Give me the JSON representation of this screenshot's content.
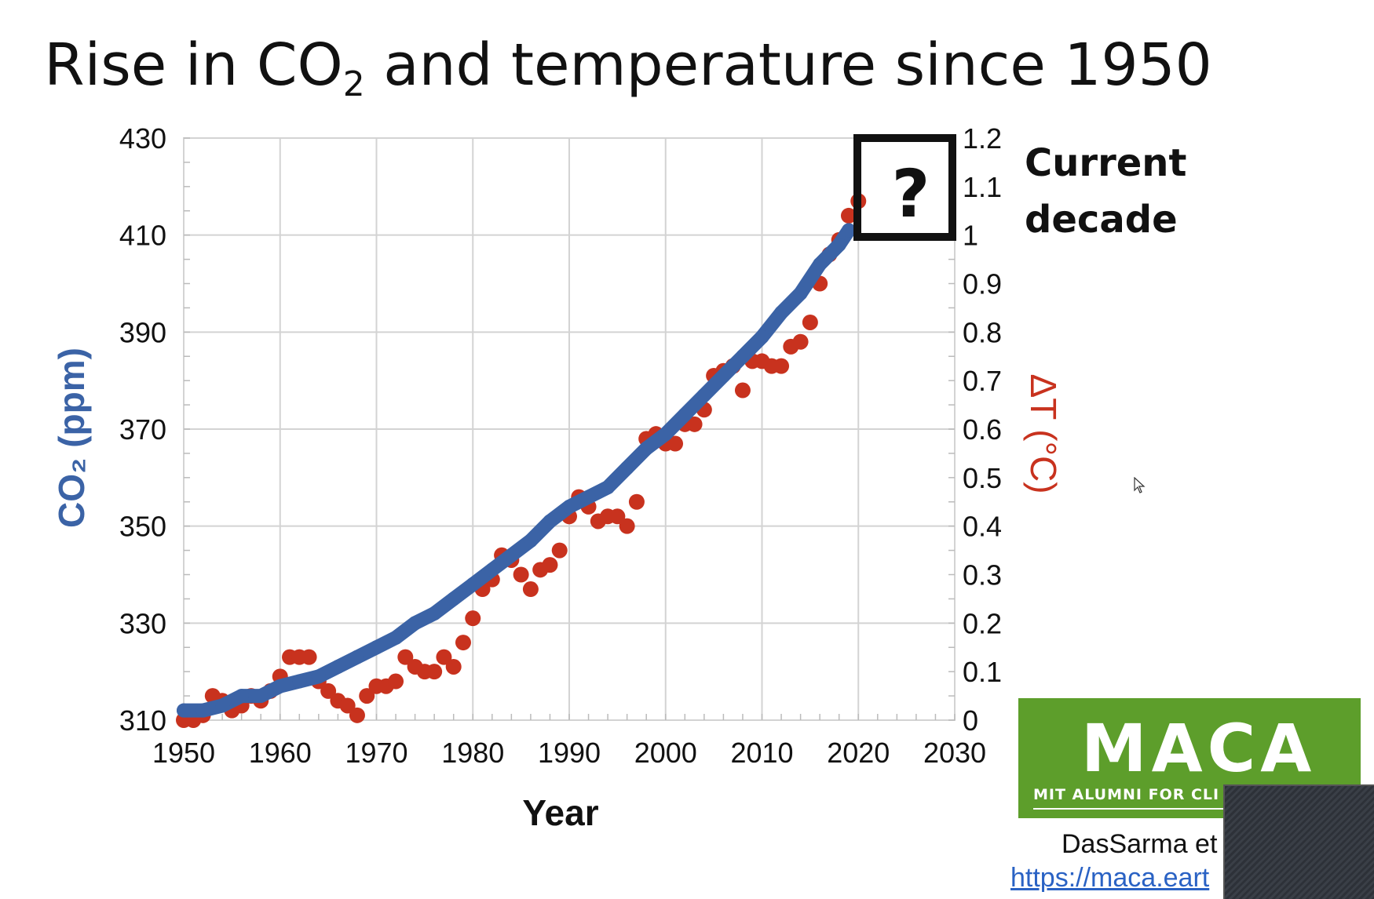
{
  "slide": {
    "title_main": "Rise in CO",
    "title_sub": "2",
    "title_rest": " and temperature since 1950",
    "note_line1": "Current",
    "note_line2": "decade",
    "question_mark": "?",
    "logo_text": "MACA",
    "logo_subtext": "MIT ALUMNI FOR CLI",
    "citation": "DasSarma et",
    "link": "https://maca.eart"
  },
  "chart_data": {
    "type": "scatter",
    "xlabel": "Year",
    "ylabel_left": "CO₂ (ppm)",
    "ylabel_right": "ΔT (°C)",
    "xlim": [
      1950,
      2030
    ],
    "ylim_left": [
      310,
      430
    ],
    "ylim_right": [
      0,
      1.2
    ],
    "x_ticks": [
      1950,
      1960,
      1970,
      1980,
      1990,
      2000,
      2010,
      2020,
      2030
    ],
    "y_left_ticks": [
      310,
      330,
      350,
      370,
      390,
      410,
      430
    ],
    "y_right_ticks": [
      0,
      0.1,
      0.2,
      0.3,
      0.4,
      0.5,
      0.6,
      0.7,
      0.8,
      0.9,
      1,
      1.1,
      1.2
    ],
    "y_right_tick_labels": [
      "0",
      "0.1",
      "0.2",
      "0.3",
      "0.4",
      "0.5",
      "0.6",
      "0.7",
      "0.8",
      "0.9",
      "1",
      "1.1",
      "1.2"
    ],
    "grid": true,
    "colors": {
      "co2": "#3b63a6",
      "temperature": "#c8321e"
    },
    "series": [
      {
        "axis": "left",
        "x": [
          1950,
          1952,
          1954,
          1956,
          1958,
          1960,
          1962,
          1964,
          1966,
          1968,
          1970,
          1972,
          1974,
          1976,
          1978,
          1980,
          1982,
          1984,
          1986,
          1988,
          1990,
          1992,
          1994,
          1996,
          1998,
          2000,
          2002,
          2004,
          2006,
          2008,
          2010,
          2012,
          2014,
          2016,
          2018,
          2019
        ],
        "values": [
          312,
          312,
          313,
          315,
          315,
          317,
          318,
          319,
          321,
          323,
          325,
          327,
          330,
          332,
          335,
          338,
          341,
          344,
          347,
          351,
          354,
          356,
          358,
          362,
          366,
          369,
          373,
          377,
          381,
          385,
          389,
          394,
          398,
          404,
          408,
          411
        ]
      },
      {
        "axis": "right",
        "x": [
          1950,
          1951,
          1952,
          1953,
          1954,
          1955,
          1956,
          1957,
          1958,
          1959,
          1960,
          1961,
          1962,
          1963,
          1964,
          1965,
          1966,
          1967,
          1968,
          1969,
          1970,
          1971,
          1972,
          1973,
          1974,
          1975,
          1976,
          1977,
          1978,
          1979,
          1980,
          1981,
          1982,
          1983,
          1984,
          1985,
          1986,
          1987,
          1988,
          1989,
          1990,
          1991,
          1992,
          1993,
          1994,
          1995,
          1996,
          1997,
          1998,
          1999,
          2000,
          2001,
          2002,
          2003,
          2004,
          2005,
          2006,
          2007,
          2008,
          2009,
          2010,
          2011,
          2012,
          2013,
          2014,
          2015,
          2016,
          2017,
          2018,
          2019,
          2020
        ],
        "values": [
          0.0,
          0.0,
          0.01,
          0.05,
          0.04,
          0.02,
          0.03,
          0.05,
          0.04,
          0.06,
          0.09,
          0.13,
          0.13,
          0.13,
          0.08,
          0.06,
          0.04,
          0.03,
          0.01,
          0.05,
          0.07,
          0.07,
          0.08,
          0.13,
          0.11,
          0.1,
          0.1,
          0.13,
          0.11,
          0.16,
          0.21,
          0.27,
          0.29,
          0.34,
          0.33,
          0.3,
          0.27,
          0.31,
          0.32,
          0.35,
          0.42,
          0.46,
          0.44,
          0.41,
          0.42,
          0.42,
          0.4,
          0.45,
          0.58,
          0.59,
          0.57,
          0.57,
          0.61,
          0.61,
          0.64,
          0.71,
          0.72,
          0.73,
          0.68,
          0.74,
          0.74,
          0.73,
          0.73,
          0.77,
          0.78,
          0.82,
          0.9,
          0.96,
          0.99,
          1.04,
          1.07
        ]
      }
    ]
  }
}
